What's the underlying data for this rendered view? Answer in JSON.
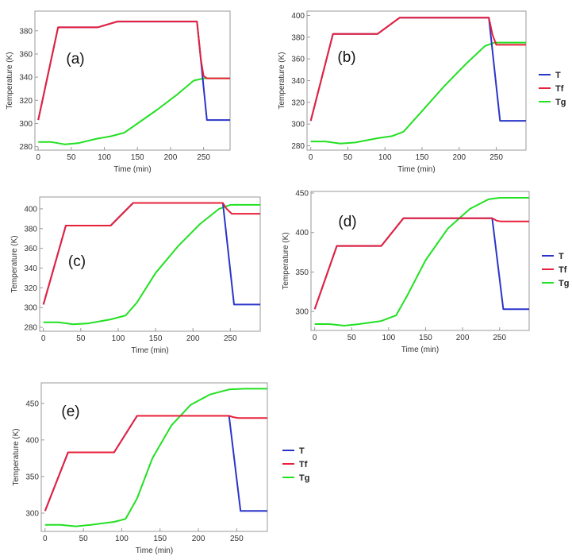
{
  "figure": {
    "legend_labels": [
      "T",
      "Tf",
      "Tg"
    ],
    "series_colors": {
      "T": "#2a35c8",
      "Tf": "#e8203a",
      "Tg": "#22e022"
    }
  },
  "chart_data": [
    {
      "type": "line",
      "panel_label": "(a)",
      "xlabel": "Time (min)",
      "ylabel": "Temperature (K)",
      "xlim": [
        -5,
        290
      ],
      "ylim": [
        277,
        397
      ],
      "xticks": [
        0,
        50,
        100,
        150,
        200,
        250
      ],
      "yticks": [
        280,
        300,
        320,
        340,
        360,
        380
      ],
      "legend": false,
      "series": [
        {
          "name": "T",
          "x": [
            0,
            30,
            90,
            120,
            240,
            255,
            290
          ],
          "y": [
            303,
            383,
            383,
            388,
            388,
            303,
            303
          ]
        },
        {
          "name": "Tf",
          "x": [
            0,
            30,
            90,
            120,
            240,
            246,
            250,
            255,
            290
          ],
          "y": [
            303,
            383,
            383,
            388,
            388,
            355,
            341,
            339,
            339
          ]
        },
        {
          "name": "Tg",
          "x": [
            0,
            20,
            40,
            60,
            90,
            110,
            130,
            150,
            180,
            210,
            235,
            250,
            290
          ],
          "y": [
            284,
            284,
            282,
            283,
            287,
            289,
            292,
            300,
            312,
            325,
            337,
            339,
            339
          ]
        }
      ]
    },
    {
      "type": "line",
      "panel_label": "(b)",
      "xlabel": "Time (min)",
      "ylabel": "Temperature (K)",
      "xlim": [
        -5,
        290
      ],
      "ylim": [
        276,
        404
      ],
      "xticks": [
        0,
        50,
        100,
        150,
        200,
        250
      ],
      "yticks": [
        280,
        300,
        320,
        340,
        360,
        380,
        400
      ],
      "legend": true,
      "series": [
        {
          "name": "T",
          "x": [
            0,
            30,
            90,
            120,
            240,
            255,
            290
          ],
          "y": [
            303,
            383,
            383,
            398,
            398,
            303,
            303
          ]
        },
        {
          "name": "Tf",
          "x": [
            0,
            30,
            90,
            120,
            240,
            245,
            250,
            290
          ],
          "y": [
            303,
            383,
            383,
            398,
            398,
            382,
            373,
            373
          ]
        },
        {
          "name": "Tg",
          "x": [
            0,
            20,
            40,
            60,
            90,
            110,
            125,
            150,
            180,
            210,
            235,
            248,
            290
          ],
          "y": [
            284,
            284,
            282,
            283,
            287,
            289,
            293,
            312,
            335,
            356,
            372,
            375,
            375
          ]
        }
      ]
    },
    {
      "type": "line",
      "panel_label": "(c)",
      "xlabel": "Time (min)",
      "ylabel": "Temperature (K)",
      "xlim": [
        -5,
        290
      ],
      "ylim": [
        276,
        412
      ],
      "xticks": [
        0,
        50,
        100,
        150,
        200,
        250
      ],
      "yticks": [
        280,
        300,
        320,
        340,
        360,
        380,
        400
      ],
      "legend": false,
      "series": [
        {
          "name": "T",
          "x": [
            0,
            30,
            90,
            120,
            240,
            255,
            290
          ],
          "y": [
            303,
            383,
            383,
            406,
            406,
            303,
            303
          ]
        },
        {
          "name": "Tf",
          "x": [
            0,
            30,
            90,
            120,
            240,
            245,
            252,
            290
          ],
          "y": [
            303,
            383,
            383,
            406,
            406,
            400,
            395,
            395
          ]
        },
        {
          "name": "Tg",
          "x": [
            0,
            20,
            40,
            60,
            90,
            110,
            125,
            150,
            180,
            210,
            235,
            250,
            290
          ],
          "y": [
            285,
            285,
            283,
            284,
            288,
            292,
            305,
            335,
            362,
            385,
            400,
            404,
            404
          ]
        }
      ]
    },
    {
      "type": "line",
      "panel_label": "(d)",
      "xlabel": "Time (min)",
      "ylabel": "Temperature (K)",
      "xlim": [
        -5,
        290
      ],
      "ylim": [
        276,
        452
      ],
      "xticks": [
        0,
        50,
        100,
        150,
        200,
        250
      ],
      "yticks": [
        300,
        350,
        400,
        450
      ],
      "legend": true,
      "series": [
        {
          "name": "T",
          "x": [
            0,
            30,
            90,
            120,
            240,
            255,
            290
          ],
          "y": [
            303,
            383,
            383,
            418,
            418,
            303,
            303
          ]
        },
        {
          "name": "Tf",
          "x": [
            0,
            30,
            90,
            120,
            240,
            246,
            252,
            290
          ],
          "y": [
            303,
            383,
            383,
            418,
            418,
            415,
            414,
            414
          ]
        },
        {
          "name": "Tg",
          "x": [
            0,
            20,
            40,
            60,
            90,
            110,
            125,
            150,
            180,
            210,
            235,
            250,
            290
          ],
          "y": [
            284,
            284,
            282,
            284,
            288,
            295,
            320,
            365,
            405,
            430,
            442,
            444,
            444
          ]
        }
      ]
    },
    {
      "type": "line",
      "panel_label": "(e)",
      "xlabel": "Time (min)",
      "ylabel": "Temperature (K)",
      "xlim": [
        -5,
        290
      ],
      "ylim": [
        275,
        478
      ],
      "xticks": [
        0,
        50,
        100,
        150,
        200,
        250
      ],
      "yticks": [
        300,
        350,
        400,
        450
      ],
      "legend": true,
      "series": [
        {
          "name": "T",
          "x": [
            0,
            30,
            90,
            120,
            240,
            255,
            290
          ],
          "y": [
            303,
            383,
            383,
            433,
            433,
            303,
            303
          ]
        },
        {
          "name": "Tf",
          "x": [
            0,
            30,
            90,
            120,
            240,
            246,
            252,
            290
          ],
          "y": [
            303,
            383,
            383,
            433,
            433,
            431,
            430,
            430
          ]
        },
        {
          "name": "Tg",
          "x": [
            0,
            20,
            40,
            60,
            90,
            105,
            120,
            140,
            165,
            190,
            215,
            240,
            260,
            290
          ],
          "y": [
            284,
            284,
            282,
            284,
            288,
            292,
            320,
            375,
            420,
            448,
            462,
            469,
            470,
            470
          ]
        }
      ]
    }
  ]
}
